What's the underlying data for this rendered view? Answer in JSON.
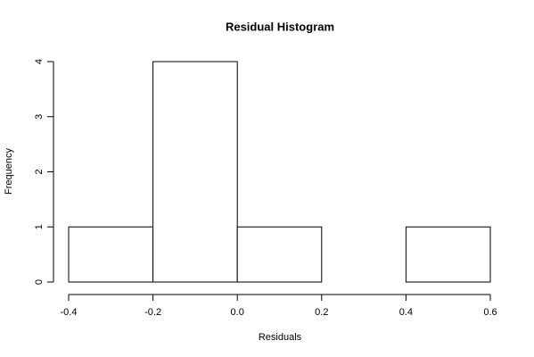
{
  "chart_data": {
    "type": "histogram",
    "title": "Residual Histogram",
    "x_label": "Residuals",
    "y_label": "Frequency",
    "bins": [
      -0.4,
      -0.2,
      0,
      0.2,
      0.4,
      0.6
    ],
    "counts": [
      1,
      4,
      1,
      0,
      1
    ],
    "xlim": [
      -0.4,
      0.6
    ],
    "xticks": [
      -0.4,
      -0.2,
      {
        "value": 0,
        "label": "0.0"
      },
      0.2,
      0.4,
      0.6
    ],
    "ylim": [
      0,
      4
    ],
    "yticks": [
      0,
      1,
      2,
      3,
      4
    ],
    "color": "#ffffff"
  }
}
